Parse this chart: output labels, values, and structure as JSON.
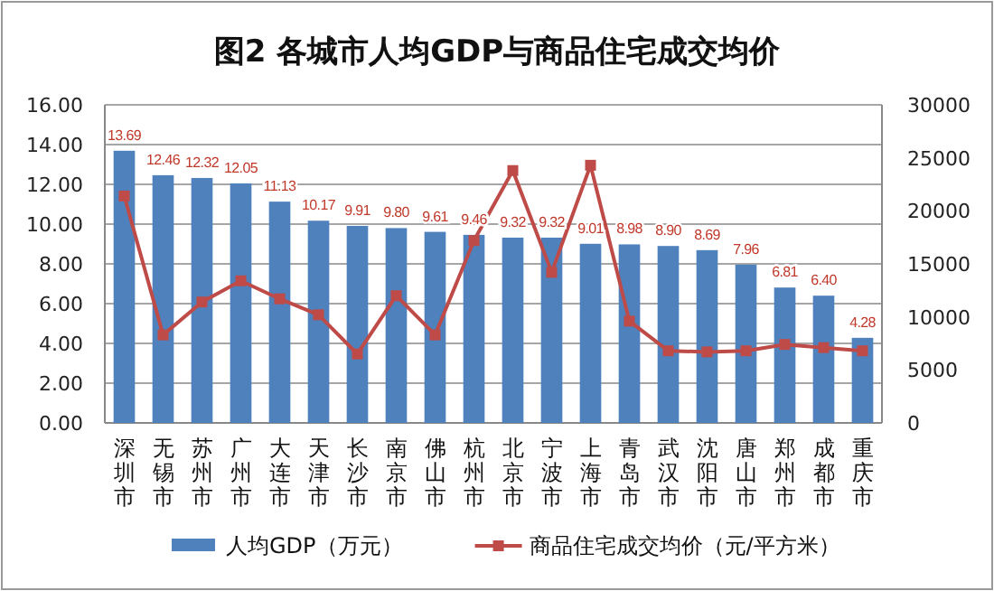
{
  "chart_data": {
    "type": "bar",
    "title": "图2  各城市人均GDP与商品住宅成交均价",
    "categories": [
      "深圳市",
      "无锡市",
      "苏州市",
      "广州市",
      "大连市",
      "天津市",
      "长沙市",
      "南京市",
      "佛山市",
      "杭州市",
      "北京市",
      "宁波市",
      "上海市",
      "青岛市",
      "武汉市",
      "沈阳市",
      "唐山市",
      "郑州市",
      "成都市",
      "重庆市"
    ],
    "series": [
      {
        "name": "人均GDP（万元）",
        "color": "#4f81bd",
        "values": [
          13.69,
          12.46,
          12.32,
          12.05,
          11.13,
          10.17,
          9.91,
          9.8,
          9.61,
          9.46,
          9.32,
          9.32,
          9.01,
          8.98,
          8.9,
          8.69,
          7.96,
          6.81,
          6.4,
          4.28
        ],
        "value_labels": [
          "13.69",
          "12.46",
          "12.32",
          "12.05",
          "11.13",
          "10.17",
          "9.91",
          "9.80",
          "9.61",
          "9.46",
          "9.32",
          "9.32",
          "9.01",
          "8.98",
          "8.90",
          "8.69",
          "7.96",
          "6.81",
          "6.40",
          "4.28"
        ]
      },
      {
        "name": "商品住宅成交均价（元/平方米）",
        "type": "line",
        "axis": "y2",
        "color": "#be4b48",
        "marker": "square",
        "values": [
          21400,
          8300,
          11400,
          13400,
          11700,
          10200,
          6500,
          12000,
          8300,
          17200,
          23800,
          14200,
          24300,
          9600,
          6800,
          6700,
          6800,
          7400,
          7100,
          6800
        ]
      }
    ],
    "ylim": [
      0,
      16
    ],
    "yticks": [
      {
        "value": 0,
        "label": "0.00"
      },
      {
        "value": 2,
        "label": "2.00"
      },
      {
        "value": 4,
        "label": "4.00"
      },
      {
        "value": 6,
        "label": "6.00"
      },
      {
        "value": 8,
        "label": "8.00"
      },
      {
        "value": 10,
        "label": "10.00"
      },
      {
        "value": 12,
        "label": "12.00"
      },
      {
        "value": 14,
        "label": "14.00"
      },
      {
        "value": 16,
        "label": "16.00"
      }
    ],
    "y2lim": [
      0,
      30000
    ],
    "y2ticks": [
      0,
      5000,
      10000,
      15000,
      20000,
      25000,
      30000
    ],
    "grid": "y",
    "legend": "bottom"
  }
}
